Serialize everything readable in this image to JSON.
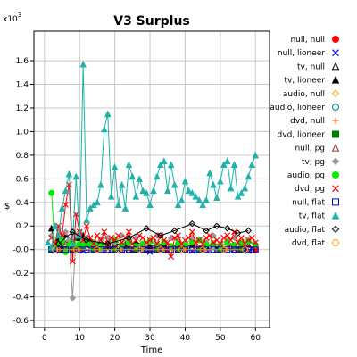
{
  "chart_data": {
    "type": "scatter",
    "title": "V3 Surplus",
    "xlabel": "Time",
    "ylabel": "$",
    "y_multiplier_label": "x10",
    "y_multiplier_exp": "3",
    "xlim": [
      -3,
      64
    ],
    "ylim": [
      -0.66,
      1.85
    ],
    "xticks": [
      0,
      10,
      20,
      30,
      40,
      50,
      60
    ],
    "yticks": [
      -0.6,
      -0.4,
      -0.2,
      0.0,
      0.2,
      0.4,
      0.6,
      0.8,
      1.0,
      1.2,
      1.4,
      1.6
    ],
    "ytick_labels": [
      "-0.6",
      "-0.4",
      "-0.2",
      "-0.0",
      "0.2",
      "0.4",
      "0.6",
      "0.8",
      "1.0",
      "1.2",
      "1.4",
      "1.6"
    ],
    "grid": true,
    "legend_position": "right",
    "series": [
      {
        "name": "null, null",
        "marker": "dot",
        "color": "#ff0000",
        "x": [
          2,
          4,
          6,
          8,
          10,
          15,
          20,
          25,
          30,
          35,
          40,
          45,
          50,
          55,
          60
        ],
        "y": [
          0,
          0,
          0,
          0,
          0,
          0,
          0,
          0,
          0,
          0,
          0,
          0,
          0,
          0,
          0
        ]
      },
      {
        "name": "null, lioneer",
        "marker": "x",
        "color": "#0000ff",
        "x": [
          3,
          5,
          8,
          11,
          14,
          18,
          22,
          26,
          30,
          34,
          38,
          42,
          46,
          50,
          54,
          58
        ],
        "y": [
          -0.01,
          0,
          0.01,
          -0.01,
          0,
          0.01,
          -0.01,
          0,
          -0.02,
          0,
          0.01,
          -0.01,
          0,
          0.01,
          0,
          -0.01
        ]
      },
      {
        "name": "tv, null",
        "marker": "triangle-open",
        "color": "#000000",
        "x": [
          2,
          5,
          9,
          14,
          19,
          24,
          29,
          34,
          39,
          44,
          49,
          54,
          59
        ],
        "y": [
          0,
          0,
          0,
          0,
          0,
          0,
          0,
          0,
          0,
          0,
          0,
          0,
          0
        ]
      },
      {
        "name": "tv, lioneer",
        "marker": "triangle",
        "color": "#000000",
        "x": [
          2,
          3,
          4,
          5,
          6,
          7,
          8,
          9,
          10,
          11,
          12,
          13,
          14,
          16,
          18,
          20,
          23,
          26,
          30,
          34,
          38,
          42,
          46,
          50,
          54,
          58
        ],
        "y": [
          0.18,
          0.05,
          0.1,
          0.02,
          0.13,
          0.08,
          0.05,
          0.1,
          0.07,
          0.12,
          0.05,
          0.08,
          0.04,
          0.06,
          0.03,
          0.05,
          0.04,
          0.06,
          0.03,
          0.05,
          0.02,
          0.04,
          0.03,
          0.05,
          0.02,
          0.04
        ]
      },
      {
        "name": "audio, null",
        "marker": "diamond-open",
        "color": "#ffa500",
        "x": [
          4,
          9,
          15,
          21,
          27,
          33,
          39,
          45,
          51,
          57
        ],
        "y": [
          0,
          0,
          0,
          0,
          0,
          0,
          0,
          0,
          0,
          0
        ]
      },
      {
        "name": "audio, lioneer",
        "marker": "circle-open",
        "color": "#008080",
        "x": [
          3,
          7,
          12,
          17,
          22,
          28,
          33,
          38,
          43,
          48,
          53,
          58
        ],
        "y": [
          0,
          0.01,
          0,
          0,
          0.01,
          0,
          0,
          0.01,
          0,
          0,
          0.01,
          0
        ]
      },
      {
        "name": "dvd, null",
        "marker": "plus",
        "color": "#ff8040",
        "x": [
          5,
          10,
          16,
          22,
          28,
          34,
          40,
          46,
          52,
          58
        ],
        "y": [
          0,
          0,
          0,
          0,
          0,
          0,
          0,
          0,
          0,
          0
        ]
      },
      {
        "name": "dvd, lioneer",
        "marker": "square",
        "color": "#008000",
        "x": [
          2,
          8,
          14,
          20,
          26,
          32,
          38,
          44,
          50,
          56
        ],
        "y": [
          0,
          0,
          0,
          0,
          0,
          0,
          0,
          0,
          0,
          0
        ]
      },
      {
        "name": "null, pg",
        "marker": "triangle-open",
        "color": "#a03030",
        "x": [
          3,
          6,
          9,
          13,
          18,
          23,
          28,
          33,
          38,
          43,
          48,
          53,
          58
        ],
        "y": [
          0.02,
          0.05,
          0.01,
          0.04,
          0.02,
          0.05,
          0.03,
          0.01,
          0.04,
          0.02,
          0.05,
          0.03,
          0.02
        ]
      },
      {
        "name": "tv, pg",
        "marker": "diamond",
        "color": "#999999",
        "x": [
          2,
          3,
          4,
          5,
          6,
          7,
          8,
          9,
          10,
          11,
          12,
          14,
          16,
          18,
          20,
          22,
          24,
          26,
          28,
          30,
          32,
          34,
          36,
          38,
          40,
          42,
          44,
          46,
          48,
          50,
          52,
          54,
          56,
          58,
          60
        ],
        "y": [
          0.12,
          0.05,
          0.18,
          0.1,
          0.15,
          0.08,
          -0.41,
          0.12,
          0.15,
          0.08,
          0.1,
          0.05,
          0.08,
          0.1,
          0.06,
          0.12,
          0.08,
          0.1,
          0.05,
          0.08,
          0.12,
          0.06,
          0.1,
          0.08,
          0.05,
          0.1,
          0.08,
          0.06,
          0.12,
          0.05,
          0.08,
          0.1,
          0.06,
          0.08,
          0.05
        ]
      },
      {
        "name": "audio, pg",
        "marker": "dot",
        "color": "#00ee00",
        "x": [
          2,
          3,
          4,
          5,
          6,
          7,
          8,
          9,
          10,
          11,
          12,
          13,
          14,
          16,
          18,
          20,
          22,
          24,
          26,
          28,
          30,
          32,
          34,
          36,
          38,
          40,
          42,
          44,
          46,
          48,
          50,
          52,
          54,
          56,
          58,
          60
        ],
        "y": [
          0.48,
          0.02,
          0.05,
          0.08,
          -0.02,
          0.04,
          0.06,
          0.02,
          0.05,
          0.03,
          0.07,
          0.04,
          0.06,
          0.03,
          0.05,
          0.08,
          0.04,
          0.06,
          0.03,
          0.05,
          0.07,
          0.04,
          0.06,
          0.03,
          0.05,
          0.04,
          0.06,
          0.08,
          0.04,
          0.05,
          0.03,
          0.06,
          0.04,
          0.05,
          0.07,
          0.04
        ]
      },
      {
        "name": "dvd, pg",
        "marker": "x",
        "color": "#ff0000",
        "x": [
          2,
          3,
          4,
          5,
          6,
          7,
          8,
          9,
          10,
          11,
          12,
          13,
          14,
          15,
          16,
          17,
          18,
          19,
          20,
          21,
          22,
          23,
          24,
          25,
          26,
          27,
          28,
          29,
          30,
          31,
          32,
          33,
          34,
          35,
          36,
          37,
          38,
          39,
          40,
          41,
          42,
          43,
          44,
          45,
          46,
          47,
          48,
          49,
          50,
          51,
          52,
          53,
          54,
          55,
          56,
          57,
          58,
          59,
          60
        ],
        "y": [
          0.1,
          0.05,
          0.2,
          0.12,
          0.38,
          0.55,
          -0.1,
          0.3,
          0.15,
          0.08,
          0.2,
          0.1,
          0.05,
          0.12,
          0.08,
          0.15,
          0.05,
          0.1,
          0.08,
          0.12,
          0.06,
          0.1,
          0.15,
          0.05,
          0.08,
          0.12,
          0.1,
          0.06,
          0.08,
          0.1,
          0.05,
          0.12,
          0.08,
          0.06,
          -0.06,
          0.1,
          0.12,
          0.05,
          0.08,
          0.1,
          0.15,
          0.06,
          0.08,
          0.05,
          0.1,
          0.12,
          0.06,
          0.08,
          0.05,
          0.1,
          0.12,
          0.08,
          0.15,
          0.06,
          0.1,
          0.05,
          0.08,
          0.1,
          0.06
        ]
      },
      {
        "name": "null, flat",
        "marker": "square-open",
        "color": "#0000cc",
        "x": [
          2,
          4,
          6,
          8,
          10,
          12,
          14,
          16,
          18,
          20,
          22,
          24,
          26,
          28,
          30,
          32,
          34,
          36,
          38,
          40,
          42,
          44,
          46,
          48,
          50,
          52,
          54,
          56,
          58,
          60
        ],
        "y": [
          0,
          0,
          0,
          0,
          0,
          0,
          0,
          0,
          0,
          0,
          0,
          0,
          0,
          0,
          0,
          0,
          0,
          0,
          0,
          0,
          0,
          0,
          0,
          0,
          0,
          0,
          0,
          0,
          0,
          0
        ]
      },
      {
        "name": "tv, flat",
        "marker": "triangle",
        "color": "#20b2aa",
        "x": [
          1,
          2,
          3,
          4,
          5,
          6,
          7,
          8,
          9,
          10,
          11,
          12,
          13,
          14,
          15,
          16,
          17,
          18,
          19,
          20,
          21,
          22,
          23,
          24,
          25,
          26,
          27,
          28,
          29,
          30,
          31,
          32,
          33,
          34,
          35,
          36,
          37,
          38,
          39,
          40,
          41,
          42,
          43,
          44,
          45,
          46,
          47,
          48,
          49,
          50,
          51,
          52,
          53,
          54,
          55,
          56,
          57,
          58,
          59,
          60
        ],
        "y": [
          0.06,
          0.02,
          0.2,
          0.12,
          0.35,
          0.5,
          0.64,
          0.05,
          0.62,
          0.12,
          1.57,
          0.25,
          0.35,
          0.38,
          0.4,
          0.55,
          1.02,
          1.15,
          0.45,
          0.7,
          0.38,
          0.55,
          0.35,
          0.72,
          0.62,
          0.45,
          0.6,
          0.5,
          0.48,
          0.38,
          0.5,
          0.62,
          0.72,
          0.75,
          0.5,
          0.72,
          0.55,
          0.38,
          0.42,
          0.58,
          0.5,
          0.48,
          0.45,
          0.42,
          0.38,
          0.42,
          0.65,
          0.55,
          0.44,
          0.58,
          0.72,
          0.75,
          0.52,
          0.72,
          0.45,
          0.48,
          0.52,
          0.62,
          0.72,
          0.8
        ]
      },
      {
        "name": "audio, flat",
        "marker": "diamond-open",
        "color": "#000000",
        "x": [
          4,
          8,
          12,
          18,
          24,
          29,
          33,
          37,
          42,
          46,
          49,
          52,
          55,
          58
        ],
        "y": [
          0.05,
          0.15,
          0.08,
          0.05,
          0.1,
          0.18,
          0.12,
          0.16,
          0.22,
          0.16,
          0.2,
          0.18,
          0.14,
          0.16
        ]
      },
      {
        "name": "dvd, flat",
        "marker": "circle-open",
        "color": "#ffa500",
        "x": [
          3,
          9,
          15,
          21,
          27,
          33,
          39,
          45,
          51,
          57
        ],
        "y": [
          0,
          0,
          0,
          0,
          0,
          0,
          0,
          0,
          0,
          0
        ]
      }
    ]
  },
  "colors": {
    "grid": "#c8c8c8",
    "axis": "#000000",
    "background": "#ffffff"
  }
}
